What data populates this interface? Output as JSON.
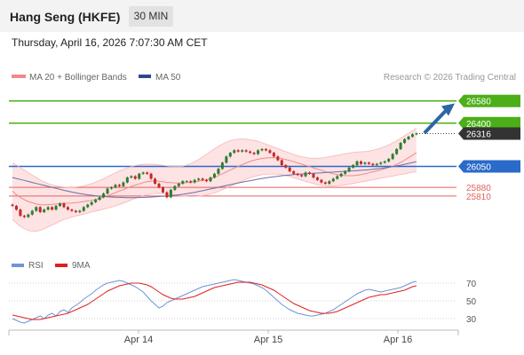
{
  "header": {
    "title": "Hang Seng (HKFE)",
    "timeframe": "30 MIN",
    "datetime": "Thursday, April 16, 2026 7:07:30 AM CET"
  },
  "legend": {
    "ma20": "MA 20 + Bollinger Bands",
    "ma50": "MA 50",
    "rsi": "RSI",
    "ma9": "9MA",
    "watermark": "Research © 2026 Trading Central"
  },
  "colors": {
    "candle_up": "#2e7d32",
    "candle_down": "#c62828",
    "resistance": "#4caf1a",
    "support_pivot": "#2a6ac8",
    "support": "#e55f5f",
    "ma20": "#f08a8a",
    "bollinger_fill": "#fde0e0",
    "ma50": "#6a6ea8",
    "arrow": "#2f64a7",
    "rsi": "#6f93d6",
    "rsi_ma": "#e02020",
    "last_price_tag": "#333333"
  },
  "chart_data": [
    {
      "type": "candlestick",
      "ylim": [
        25500,
        26700
      ],
      "x_labels": [
        "Apr 14",
        "Apr 15",
        "Apr 16"
      ],
      "levels": [
        {
          "value": 26580,
          "label": "26580",
          "kind": "resistance"
        },
        {
          "value": 26400,
          "label": "26400",
          "kind": "resistance"
        },
        {
          "value": 26316,
          "label": "26316",
          "kind": "last"
        },
        {
          "value": 26050,
          "label": "26050",
          "kind": "pivot"
        },
        {
          "value": 25880,
          "label": "25880",
          "kind": "support"
        },
        {
          "value": 25810,
          "label": "25810",
          "kind": "support"
        }
      ],
      "trend_arrow": {
        "from": 26320,
        "to": 26560
      },
      "close": [
        25730,
        25700,
        25650,
        25640,
        25660,
        25690,
        25720,
        25680,
        25700,
        25720,
        25700,
        25730,
        25750,
        25720,
        25700,
        25690,
        25680,
        25690,
        25720,
        25740,
        25760,
        25780,
        25800,
        25830,
        25870,
        25880,
        25900,
        25890,
        25920,
        25960,
        25970,
        25950,
        25990,
        26000,
        25990,
        25950,
        25910,
        25880,
        25840,
        25800,
        25860,
        25890,
        25910,
        25930,
        25930,
        25920,
        25940,
        25950,
        25940,
        25930,
        25960,
        25990,
        26030,
        26080,
        26130,
        26160,
        26180,
        26170,
        26180,
        26170,
        26160,
        26150,
        26180,
        26190,
        26180,
        26160,
        26130,
        26100,
        26060,
        26040,
        26010,
        25990,
        25980,
        25970,
        26000,
        25990,
        25960,
        25940,
        25920,
        25910,
        25930,
        25950,
        25970,
        25990,
        26010,
        26040,
        26060,
        26090,
        26070,
        26080,
        26070,
        26060,
        26070,
        26080,
        26090,
        26110,
        26150,
        26190,
        26240,
        26270,
        26290,
        26310,
        26316
      ],
      "ma20": [
        25850,
        25820,
        25800,
        25780,
        25765,
        25755,
        25745,
        25740,
        25738,
        25740,
        25742,
        25745,
        25748,
        25750,
        25752,
        25754,
        25756,
        25760,
        25765,
        25770,
        25775,
        25782,
        25790,
        25800,
        25812,
        25825,
        25838,
        25850,
        25862,
        25875,
        25888,
        25898,
        25908,
        25918,
        25926,
        25930,
        25932,
        25930,
        25926,
        25920,
        25918,
        25916,
        25915,
        25916,
        25918,
        25921,
        25925,
        25930,
        25936,
        25942,
        25950,
        25960,
        25975,
        25990,
        26005,
        26020,
        26035,
        26050,
        26065,
        26078,
        26090,
        26100,
        26108,
        26114,
        26118,
        26120,
        26120,
        26118,
        26113,
        26106,
        26097,
        26088,
        26078,
        26068,
        26058,
        26048,
        26038,
        26028,
        26018,
        26008,
        25998,
        25990,
        25983,
        25978,
        25975,
        25974,
        25975,
        25978,
        25983,
        25990,
        25998,
        26006,
        26014,
        26022,
        26030,
        26040,
        26052,
        26066,
        26082,
        26100,
        26120,
        26140,
        26160
      ],
      "bollinger_upper": [
        26080,
        26060,
        26040,
        26020,
        26000,
        25980,
        25960,
        25940,
        25925,
        25910,
        25900,
        25892,
        25886,
        25882,
        25880,
        25880,
        25882,
        25886,
        25892,
        25900,
        25910,
        25922,
        25936,
        25950,
        25966,
        25982,
        25998,
        26012,
        26026,
        26038,
        26048,
        26056,
        26062,
        26066,
        26068,
        26068,
        26066,
        26062,
        26058,
        26054,
        26050,
        26048,
        26048,
        26052,
        26060,
        26072,
        26088,
        26106,
        26126,
        26148,
        26170,
        26192,
        26212,
        26230,
        26246,
        26258,
        26266,
        26270,
        26272,
        26270,
        26266,
        26260,
        26252,
        26242,
        26230,
        26218,
        26206,
        26194,
        26182,
        26170,
        26158,
        26146,
        26136,
        26128,
        26122,
        26118,
        26116,
        26116,
        26118,
        26122,
        26128,
        26134,
        26140,
        26146,
        26152,
        26158,
        26162,
        26166,
        26168,
        26170,
        26174,
        26180,
        26188,
        26198,
        26210,
        26224,
        26240,
        26258,
        26278,
        26298,
        26318,
        26338,
        26358
      ],
      "bollinger_lower": [
        25620,
        25590,
        25565,
        25545,
        25530,
        25525,
        25525,
        25530,
        25545,
        25560,
        25575,
        25590,
        25605,
        25620,
        25630,
        25640,
        25648,
        25656,
        25664,
        25672,
        25680,
        25688,
        25696,
        25704,
        25712,
        25720,
        25730,
        25740,
        25752,
        25764,
        25778,
        25790,
        25802,
        25812,
        25820,
        25826,
        25830,
        25832,
        25830,
        25826,
        25822,
        25818,
        25814,
        25810,
        25808,
        25806,
        25806,
        25808,
        25812,
        25818,
        25826,
        25836,
        25848,
        25862,
        25876,
        25890,
        25904,
        25918,
        25932,
        25946,
        25958,
        25968,
        25976,
        25982,
        25986,
        25988,
        25988,
        25986,
        25982,
        25976,
        25968,
        25958,
        25948,
        25938,
        25928,
        25918,
        25910,
        25902,
        25896,
        25892,
        25890,
        25890,
        25892,
        25896,
        25900,
        25906,
        25912,
        25918,
        25924,
        25930,
        25936,
        25942,
        25948,
        25954,
        25960,
        25966,
        25972,
        25978,
        25984,
        25990,
        25996,
        26002,
        26008
      ],
      "ma50": [
        25960,
        25952,
        25944,
        25936,
        25928,
        25920,
        25912,
        25904,
        25896,
        25888,
        25880,
        25872,
        25864,
        25856,
        25849,
        25842,
        25836,
        25830,
        25825,
        25820,
        25816,
        25812,
        25809,
        25806,
        25804,
        25802,
        25800,
        25799,
        25798,
        25797,
        25797,
        25797,
        25798,
        25799,
        25800,
        25802,
        25804,
        25806,
        25808,
        25810,
        25813,
        25816,
        25820,
        25824,
        25829,
        25834,
        25840,
        25846,
        25853,
        25860,
        25867,
        25874,
        25881,
        25888,
        25895,
        25902,
        25909,
        25916,
        25922,
        25928,
        25934,
        25940,
        25946,
        25952,
        25957,
        25962,
        25966,
        25970,
        25974,
        25977,
        25980,
        25983,
        25986,
        25988,
        25990,
        25992,
        25994,
        25996,
        25998,
        26000,
        26002,
        26004,
        26006,
        26008,
        26010,
        26012,
        26014,
        26016,
        26018,
        26020,
        26023,
        26026,
        26030,
        26034,
        26038,
        26043,
        26048,
        26054,
        26060,
        26067,
        26074,
        26081,
        26088
      ]
    },
    {
      "type": "line",
      "name": "RSI panel",
      "ylim": [
        20,
        80
      ],
      "y_ticks": [
        30,
        50,
        70
      ],
      "series": [
        {
          "name": "RSI",
          "values": [
            30,
            28,
            26,
            25,
            27,
            29,
            31,
            33,
            30,
            34,
            36,
            33,
            38,
            40,
            37,
            42,
            45,
            48,
            52,
            55,
            58,
            62,
            65,
            68,
            70,
            71,
            72,
            73,
            72,
            70,
            68,
            66,
            63,
            60,
            55,
            50,
            46,
            42,
            44,
            48,
            50,
            52,
            54,
            56,
            58,
            60,
            62,
            64,
            66,
            67,
            68,
            69,
            70,
            71,
            72,
            73,
            74,
            73,
            72,
            71,
            70,
            69,
            67,
            65,
            62,
            58,
            54,
            50,
            46,
            43,
            40,
            38,
            36,
            35,
            34,
            33,
            33,
            34,
            35,
            36,
            38,
            40,
            43,
            46,
            49,
            52,
            55,
            58,
            60,
            62,
            63,
            62,
            61,
            60,
            61,
            62,
            63,
            64,
            65,
            67,
            69,
            71,
            72
          ]
        },
        {
          "name": "9MA",
          "values": [
            34,
            33,
            32,
            31,
            30,
            29,
            29,
            29,
            30,
            31,
            32,
            33,
            34,
            35,
            36,
            38,
            40,
            42,
            44,
            46,
            49,
            52,
            55,
            58,
            61,
            63,
            65,
            67,
            68,
            69,
            70,
            70,
            70,
            69,
            68,
            66,
            63,
            60,
            57,
            55,
            53,
            52,
            52,
            52,
            53,
            54,
            55,
            57,
            59,
            61,
            63,
            65,
            66,
            67,
            68,
            69,
            70,
            71,
            71,
            71,
            71,
            70,
            69,
            68,
            66,
            64,
            62,
            59,
            56,
            53,
            50,
            47,
            45,
            43,
            41,
            39,
            38,
            37,
            36,
            36,
            36,
            37,
            38,
            40,
            42,
            44,
            46,
            48,
            50,
            52,
            54,
            55,
            56,
            57,
            57,
            58,
            59,
            60,
            61,
            62,
            64,
            66,
            67
          ]
        }
      ]
    }
  ]
}
